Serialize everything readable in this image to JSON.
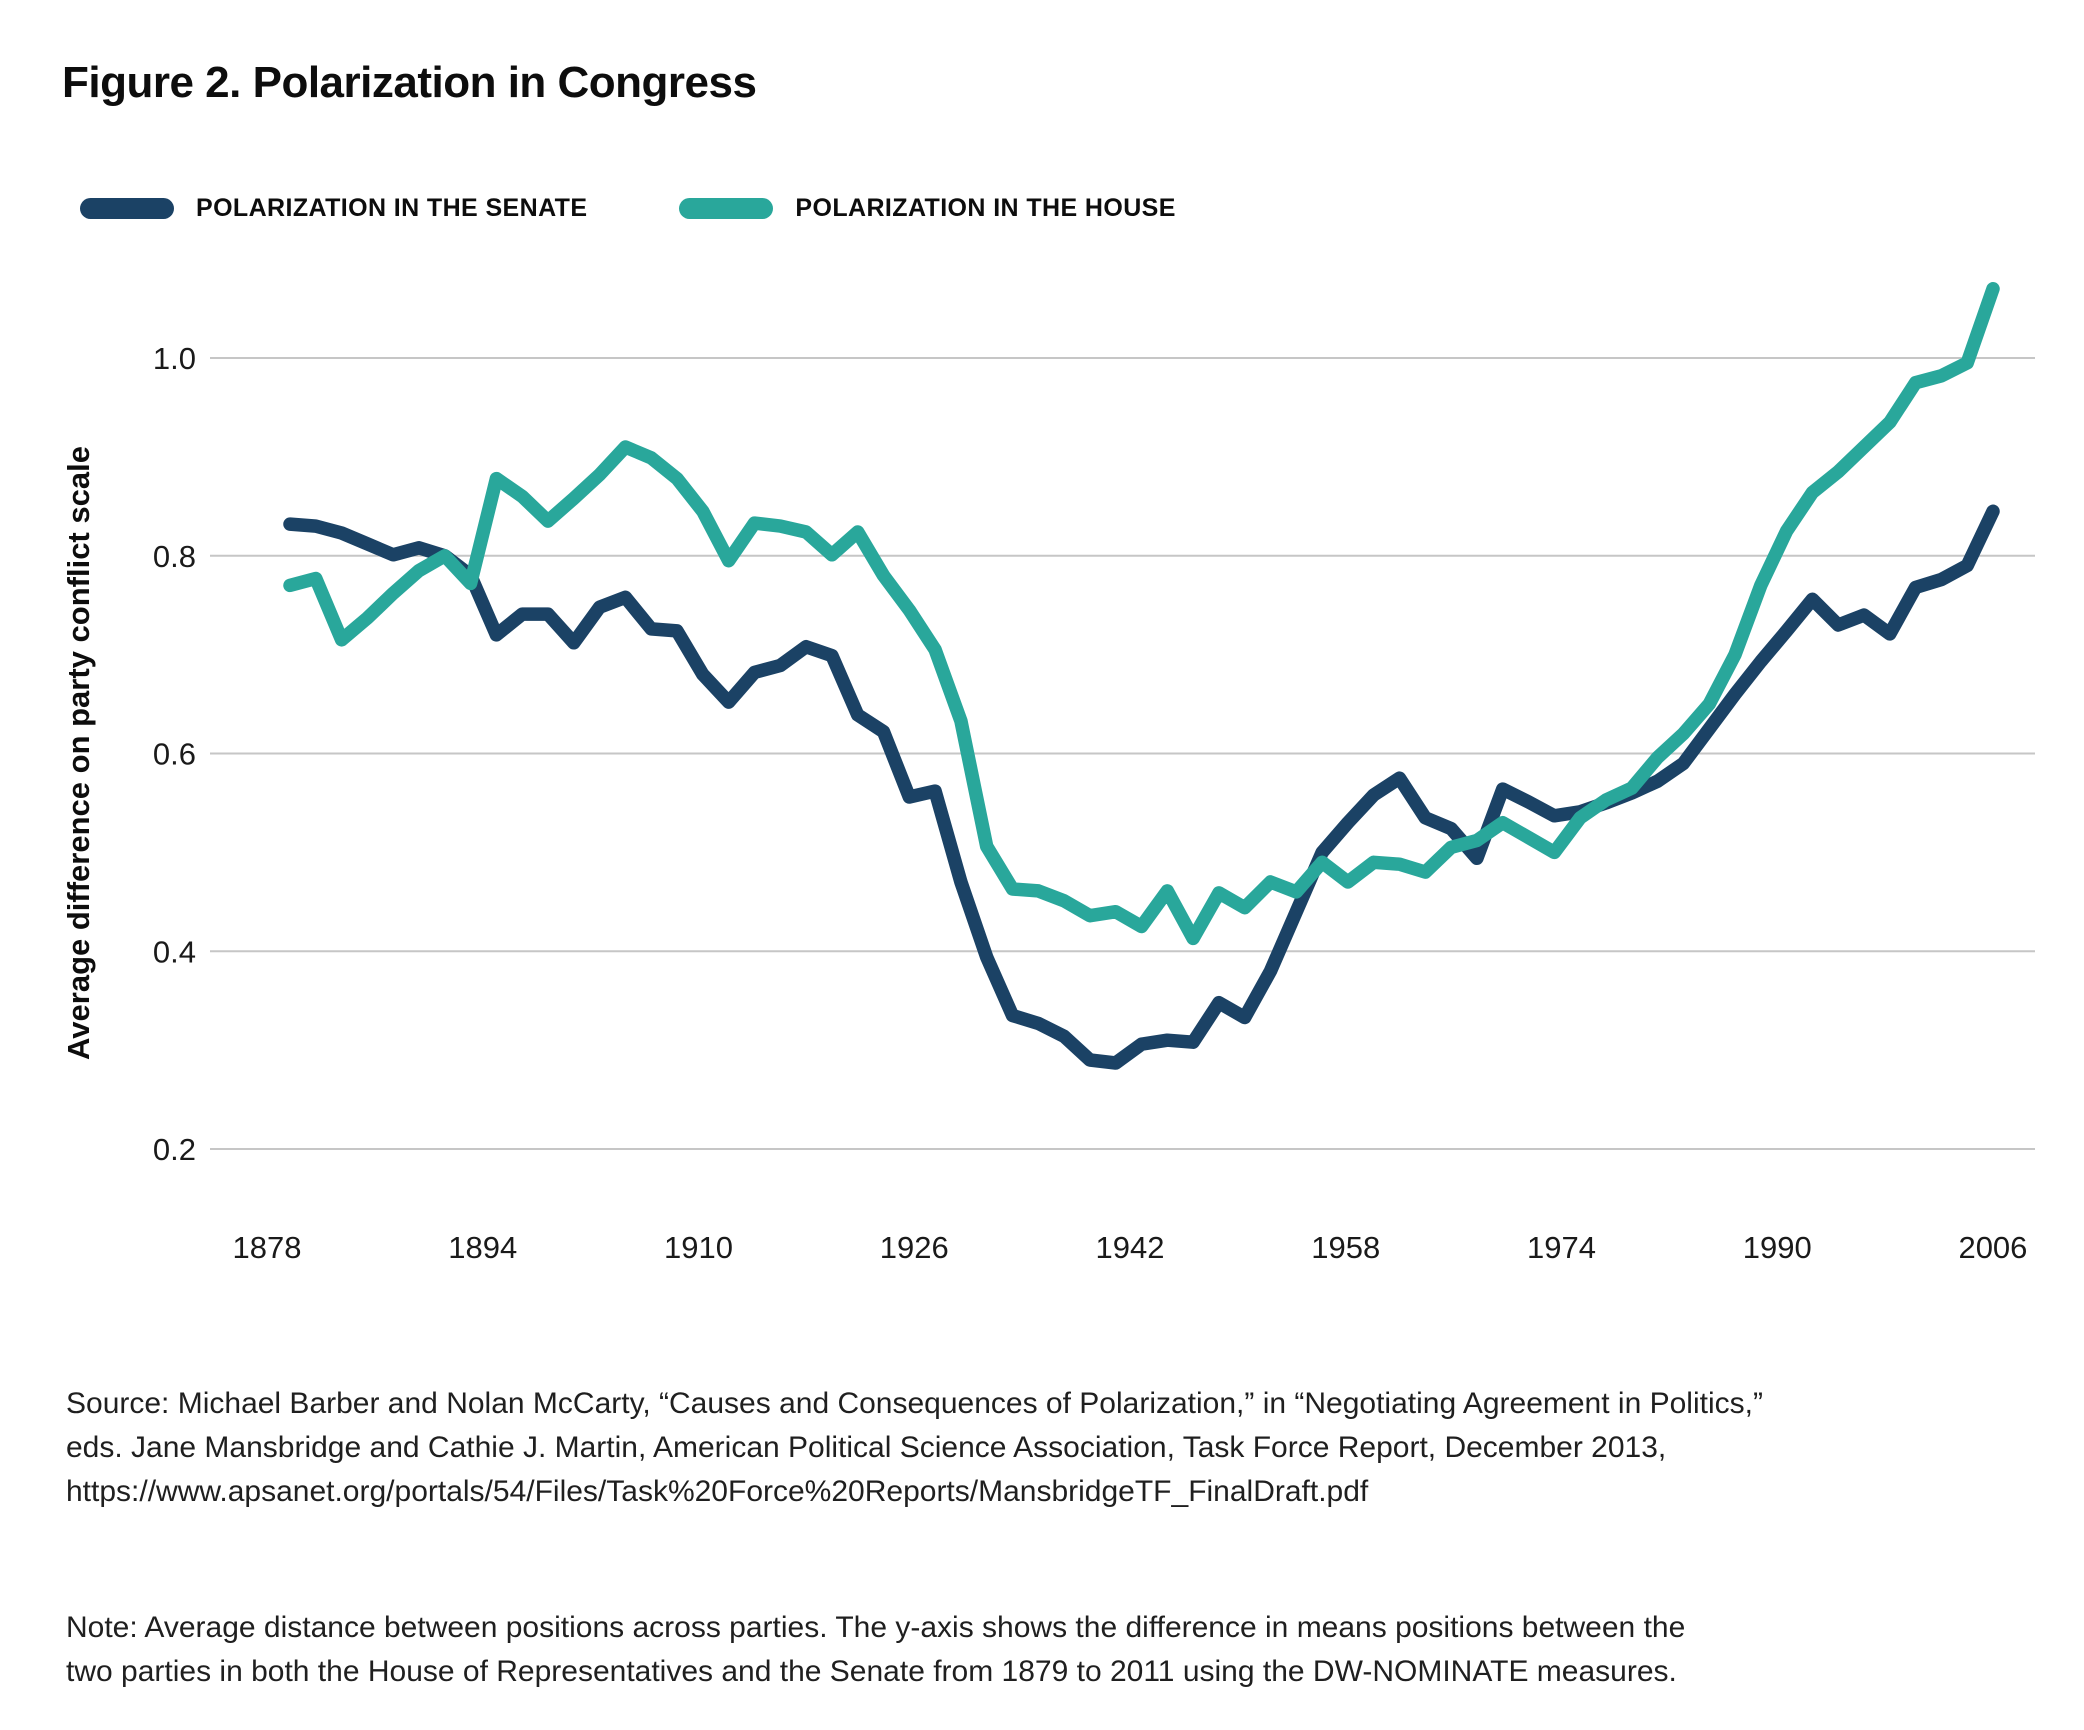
{
  "page": {
    "title": "Figure 2. Polarization in Congress"
  },
  "legend": {
    "items": [
      {
        "label": "POLARIZATION IN THE SENATE",
        "color": "#1B4265"
      },
      {
        "label": "POLARIZATION IN THE HOUSE",
        "color": "#29A79B"
      }
    ]
  },
  "source": {
    "lines": {
      "0": "Source: Michael Barber and Nolan McCarty, “Causes and Consequences of Polarization,” in “Negotiating Agreement in Politics,”",
      "1": "eds. Jane Mansbridge and Cathie J. Martin, American Political Science Association, Task Force Report, December 2013,",
      "2": "https://www.apsanet.org/portals/54/Files/Task%20Force%20Reports/MansbridgeTF_FinalDraft.pdf"
    }
  },
  "note": {
    "lines": {
      "0": "Note: Average distance between positions across parties. The y-axis shows the difference in means positions between the",
      "1": "two parties in both the House of Representatives and the Senate from 1879 to 2011 using the DW-NOMINATE measures."
    }
  },
  "chart_data": {
    "type": "line",
    "title": "Figure 2. Polarization in Congress",
    "xlabel": "",
    "ylabel": "Average difference on party conflict scale",
    "x_ticks": [
      1878,
      1894,
      1910,
      1926,
      1942,
      1958,
      1974,
      1990,
      2006
    ],
    "y_ticks": [
      1.0,
      0.8,
      0.6,
      0.4,
      0.2
    ],
    "ylim": [
      0.15,
      1.12
    ],
    "grid": true,
    "legend_position": "top",
    "grid_color": "#c6c6c6",
    "x": [
      1879,
      1881,
      1883,
      1885,
      1887,
      1889,
      1891,
      1893,
      1895,
      1897,
      1899,
      1901,
      1903,
      1905,
      1907,
      1909,
      1911,
      1913,
      1915,
      1917,
      1919,
      1921,
      1923,
      1925,
      1927,
      1929,
      1931,
      1933,
      1935,
      1937,
      1939,
      1941,
      1943,
      1945,
      1947,
      1949,
      1951,
      1953,
      1955,
      1957,
      1959,
      1961,
      1963,
      1965,
      1967,
      1969,
      1971,
      1973,
      1975,
      1977,
      1979,
      1981,
      1983,
      1985,
      1987,
      1989,
      1991,
      1993,
      1995,
      1997,
      1999,
      2001,
      2003,
      2005,
      2007,
      2009,
      2011
    ],
    "series": [
      {
        "name": "Polarization in the Senate",
        "color": "#1B4265",
        "values": [
          0.832,
          0.83,
          0.823,
          0.812,
          0.801,
          0.808,
          0.8,
          0.78,
          0.72,
          0.741,
          0.741,
          0.712,
          0.748,
          0.758,
          0.726,
          0.724,
          0.68,
          0.652,
          0.682,
          0.689,
          0.708,
          0.699,
          0.639,
          0.622,
          0.556,
          0.562,
          0.47,
          0.394,
          0.335,
          0.327,
          0.314,
          0.29,
          0.287,
          0.306,
          0.31,
          0.308,
          0.348,
          0.333,
          0.38,
          0.44,
          0.5,
          0.53,
          0.558,
          0.575,
          0.535,
          0.524,
          0.494,
          0.564,
          0.551,
          0.537,
          0.541,
          0.55,
          0.56,
          0.572,
          0.59,
          0.625,
          0.66,
          0.693,
          0.724,
          0.756,
          0.73,
          0.74,
          0.721,
          0.768,
          0.776,
          0.79,
          0.845
        ]
      },
      {
        "name": "Polarization in the House",
        "color": "#29A79B",
        "values": [
          0.77,
          0.777,
          0.715,
          0.737,
          0.762,
          0.785,
          0.8,
          0.772,
          0.878,
          0.86,
          0.835,
          0.858,
          0.882,
          0.91,
          0.899,
          0.878,
          0.845,
          0.795,
          0.833,
          0.83,
          0.824,
          0.801,
          0.824,
          0.78,
          0.745,
          0.705,
          0.633,
          0.506,
          0.463,
          0.461,
          0.451,
          0.436,
          0.44,
          0.425,
          0.461,
          0.413,
          0.459,
          0.444,
          0.47,
          0.46,
          0.49,
          0.47,
          0.49,
          0.488,
          0.48,
          0.505,
          0.512,
          0.53,
          0.515,
          0.5,
          0.535,
          0.553,
          0.565,
          0.596,
          0.62,
          0.65,
          0.7,
          0.77,
          0.825,
          0.864,
          0.885,
          0.91,
          0.935,
          0.975,
          0.982,
          0.995,
          1.07
        ]
      }
    ]
  }
}
